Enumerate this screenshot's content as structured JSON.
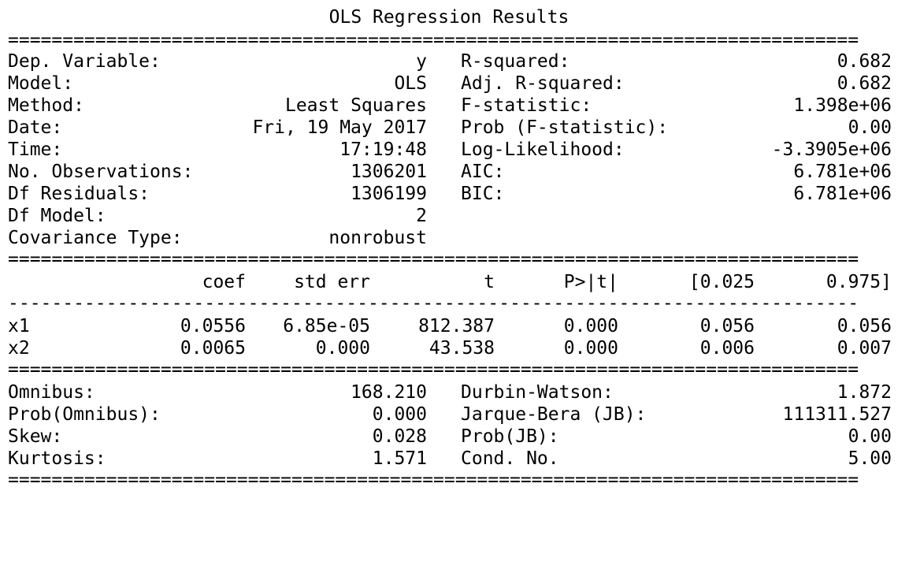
{
  "title": "OLS Regression Results",
  "rules": {
    "double": "==============================================================================",
    "single": "------------------------------------------------------------------------------"
  },
  "summary": {
    "left": [
      {
        "label": "Dep. Variable:",
        "value": "y"
      },
      {
        "label": "Model:",
        "value": "OLS"
      },
      {
        "label": "Method:",
        "value": "Least Squares"
      },
      {
        "label": "Date:",
        "value": "Fri, 19 May 2017"
      },
      {
        "label": "Time:",
        "value": "17:19:48"
      },
      {
        "label": "No. Observations:",
        "value": "1306201"
      },
      {
        "label": "Df Residuals:",
        "value": "1306199"
      },
      {
        "label": "Df Model:",
        "value": "2"
      },
      {
        "label": "Covariance Type:",
        "value": "nonrobust"
      }
    ],
    "right": [
      {
        "label": "R-squared:",
        "value": "0.682"
      },
      {
        "label": "Adj. R-squared:",
        "value": "0.682"
      },
      {
        "label": "F-statistic:",
        "value": "1.398e+06"
      },
      {
        "label": "Prob (F-statistic):",
        "value": "0.00"
      },
      {
        "label": "Log-Likelihood:",
        "value": "-3.3905e+06"
      },
      {
        "label": "AIC:",
        "value": "6.781e+06"
      },
      {
        "label": "BIC:",
        "value": "6.781e+06"
      }
    ]
  },
  "coef_table": {
    "headers": [
      "",
      "coef",
      "std err",
      "t",
      "P>|t|",
      "[0.025",
      "0.975]"
    ],
    "rows": [
      [
        "x1",
        "0.0556",
        "6.85e-05",
        "812.387",
        "0.000",
        "0.056",
        "0.056"
      ],
      [
        "x2",
        "0.0065",
        "0.000",
        "43.538",
        "0.000",
        "0.006",
        "0.007"
      ]
    ]
  },
  "diagnostics": {
    "left": [
      {
        "label": "Omnibus:",
        "value": "168.210"
      },
      {
        "label": "Prob(Omnibus):",
        "value": "0.000"
      },
      {
        "label": "Skew:",
        "value": "0.028"
      },
      {
        "label": "Kurtosis:",
        "value": "1.571"
      }
    ],
    "right": [
      {
        "label": "Durbin-Watson:",
        "value": "1.872"
      },
      {
        "label": "Jarque-Bera (JB):",
        "value": "111311.527"
      },
      {
        "label": "Prob(JB):",
        "value": "0.00"
      },
      {
        "label": "Cond. No.",
        "value": "5.00"
      }
    ]
  }
}
